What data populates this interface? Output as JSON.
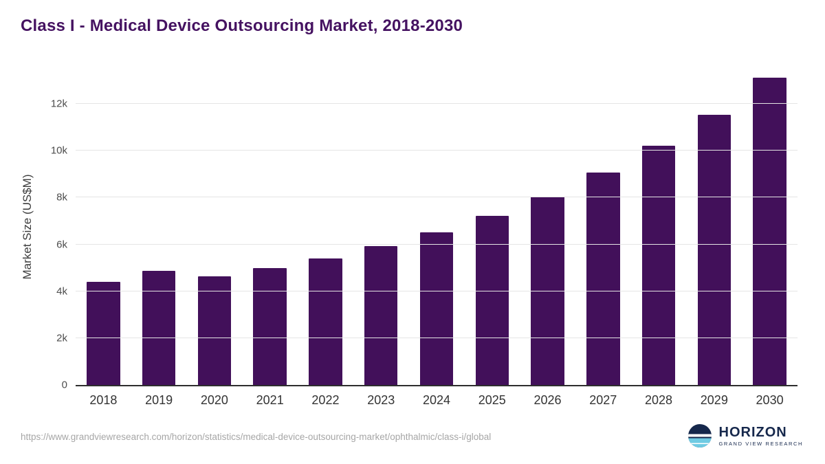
{
  "header": {
    "title_color": "#451261"
  },
  "chart_data": {
    "type": "bar",
    "title": "Class I - Medical Device Outsourcing Market, 2018-2030",
    "xlabel": "",
    "ylabel": "Market Size (US$M)",
    "categories": [
      "2018",
      "2019",
      "2020",
      "2021",
      "2022",
      "2023",
      "2024",
      "2025",
      "2026",
      "2027",
      "2028",
      "2029",
      "2030"
    ],
    "values": [
      4400,
      4870,
      4630,
      5000,
      5400,
      5920,
      6520,
      7230,
      8050,
      9060,
      10200,
      11530,
      13120
    ],
    "ylim": [
      0,
      13500
    ],
    "yticks": [
      {
        "value": 0,
        "label": "0"
      },
      {
        "value": 2000,
        "label": "2k"
      },
      {
        "value": 4000,
        "label": "4k"
      },
      {
        "value": 6000,
        "label": "6k"
      },
      {
        "value": 8000,
        "label": "8k"
      },
      {
        "value": 10000,
        "label": "10k"
      },
      {
        "value": 12000,
        "label": "12k"
      }
    ],
    "bar_color": "#42105a",
    "grid": "horizontal",
    "legend": "none"
  },
  "footer": {
    "source_url": "https://www.grandviewresearch.com/horizon/statistics/medical-device-outsourcing-market/ophthalmic/class-i/global",
    "logo_name": "HORIZON",
    "logo_tagline": "GRAND VIEW RESEARCH",
    "logo_colors": {
      "navy": "#16284c",
      "light_blue": "#6fcbe3",
      "white": "#ffffff"
    }
  }
}
